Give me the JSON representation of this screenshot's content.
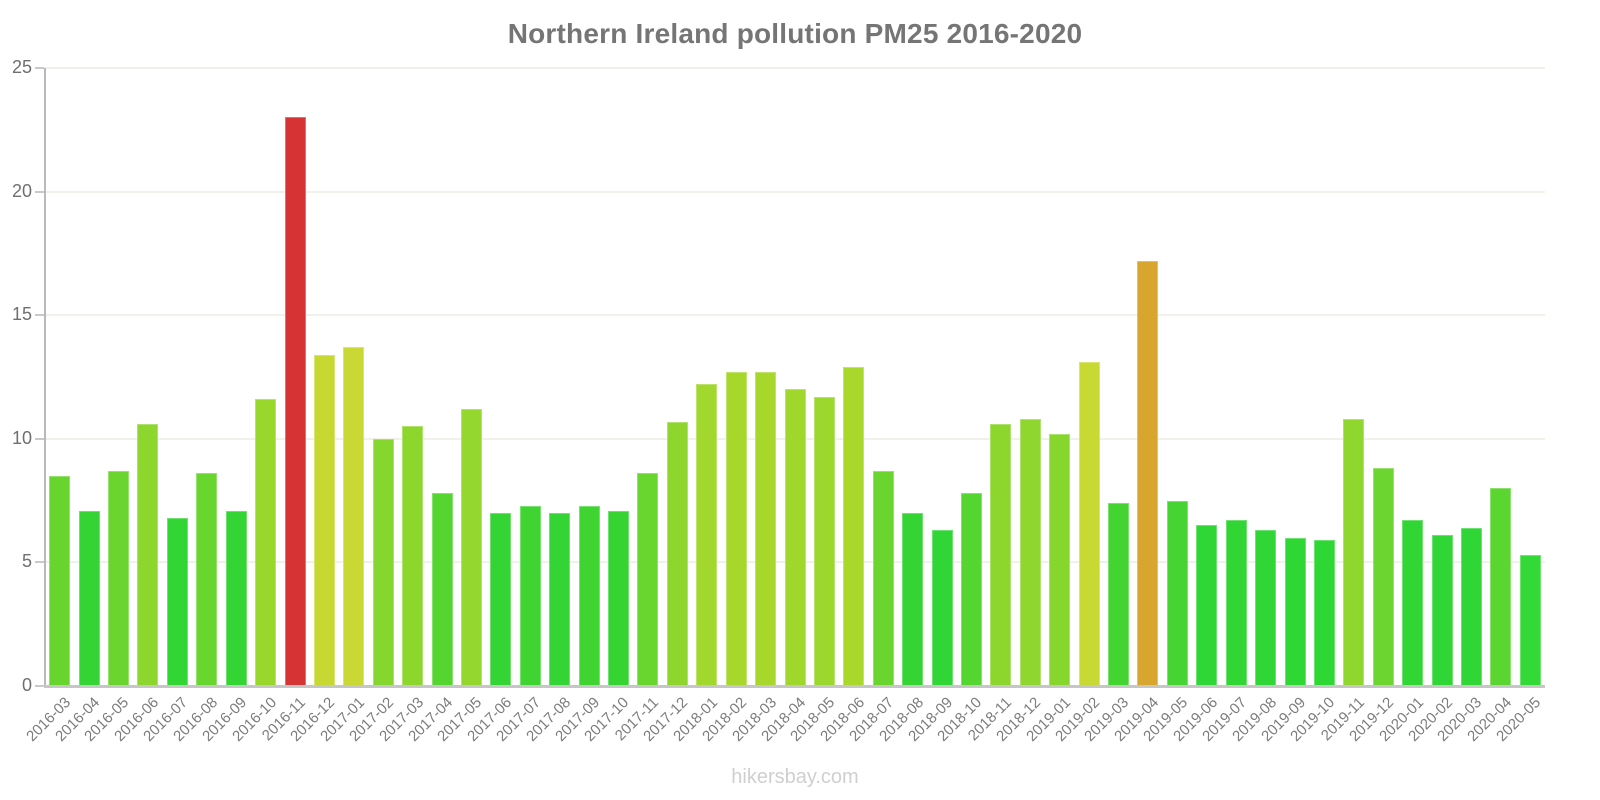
{
  "page": {
    "footer": "hikersbay.com"
  },
  "chart_data": {
    "type": "bar",
    "title": "Northern Ireland pollution PM25 2016-2020",
    "xlabel": "",
    "ylabel": "",
    "ylim": [
      0,
      25
    ],
    "yticks": [
      0,
      5,
      10,
      15,
      20,
      25
    ],
    "grid": "horizontal-faint",
    "legend_position": "none",
    "categories": [
      "2016-03",
      "2016-04",
      "2016-05",
      "2016-06",
      "2016-07",
      "2016-08",
      "2016-09",
      "2016-10",
      "2016-11",
      "2016-12",
      "2017-01",
      "2017-02",
      "2017-03",
      "2017-04",
      "2017-05",
      "2017-06",
      "2017-07",
      "2017-08",
      "2017-09",
      "2017-10",
      "2017-11",
      "2017-12",
      "2018-01",
      "2018-02",
      "2018-03",
      "2018-04",
      "2018-05",
      "2018-06",
      "2018-07",
      "2018-08",
      "2018-09",
      "2018-10",
      "2018-11",
      "2018-12",
      "2019-01",
      "2019-02",
      "2019-03",
      "2019-04",
      "2019-05",
      "2019-06",
      "2019-07",
      "2019-08",
      "2019-09",
      "2019-10",
      "2019-11",
      "2019-12",
      "2020-01",
      "2020-02",
      "2020-03",
      "2020-04",
      "2020-05"
    ],
    "values": [
      8.5,
      7.1,
      8.7,
      10.6,
      6.8,
      8.6,
      7.1,
      11.6,
      23.0,
      13.4,
      13.7,
      10.0,
      10.5,
      7.8,
      11.2,
      7.0,
      7.3,
      7.0,
      7.3,
      7.1,
      8.6,
      10.7,
      12.2,
      12.7,
      12.7,
      12.0,
      11.7,
      12.9,
      8.7,
      7.0,
      6.3,
      7.8,
      10.6,
      10.8,
      10.2,
      13.1,
      7.4,
      17.2,
      7.5,
      6.5,
      6.7,
      6.3,
      6.0,
      5.9,
      10.8,
      8.8,
      6.7,
      6.1,
      6.4,
      8.0,
      5.3
    ],
    "colors": [
      "#68D52F",
      "#33D433",
      "#6BD52F",
      "#8DD62E",
      "#31D634",
      "#69D52F",
      "#33D433",
      "#9AD72D",
      "#D63434",
      "#C7D833",
      "#C9D834",
      "#85D62E",
      "#8CD62E",
      "#55D530",
      "#94D72E",
      "#33D433",
      "#40D432",
      "#33D433",
      "#40D432",
      "#35D433",
      "#69D52F",
      "#8ED62E",
      "#A2D72D",
      "#A8D72C",
      "#A8D72C",
      "#A0D72D",
      "#9BD72D",
      "#AAD72C",
      "#6BD52F",
      "#33D433",
      "#2FD636",
      "#55D530",
      "#8DD62E",
      "#8FD62E",
      "#87D62E",
      "#C9D934",
      "#43D431",
      "#D8A52F",
      "#45D431",
      "#30D635",
      "#31D634",
      "#2FD636",
      "#2FD735",
      "#2FD735",
      "#8FD62E",
      "#6CD52F",
      "#31D634",
      "#2FD636",
      "#2FD636",
      "#5BD530",
      "#33D936"
    ],
    "accent_colors": {
      "red_peak": "#D63434",
      "orange_peak": "#D8A52F",
      "yellow_green": "#C9D934",
      "base_green": "#33D433"
    }
  },
  "style": {
    "grid_color": "#F1F0EA",
    "axis_color": "#C6C6C6",
    "tick_text_color": "#6F6F6F",
    "title_color": "#757575",
    "footer_color": "#CFCFCF"
  }
}
